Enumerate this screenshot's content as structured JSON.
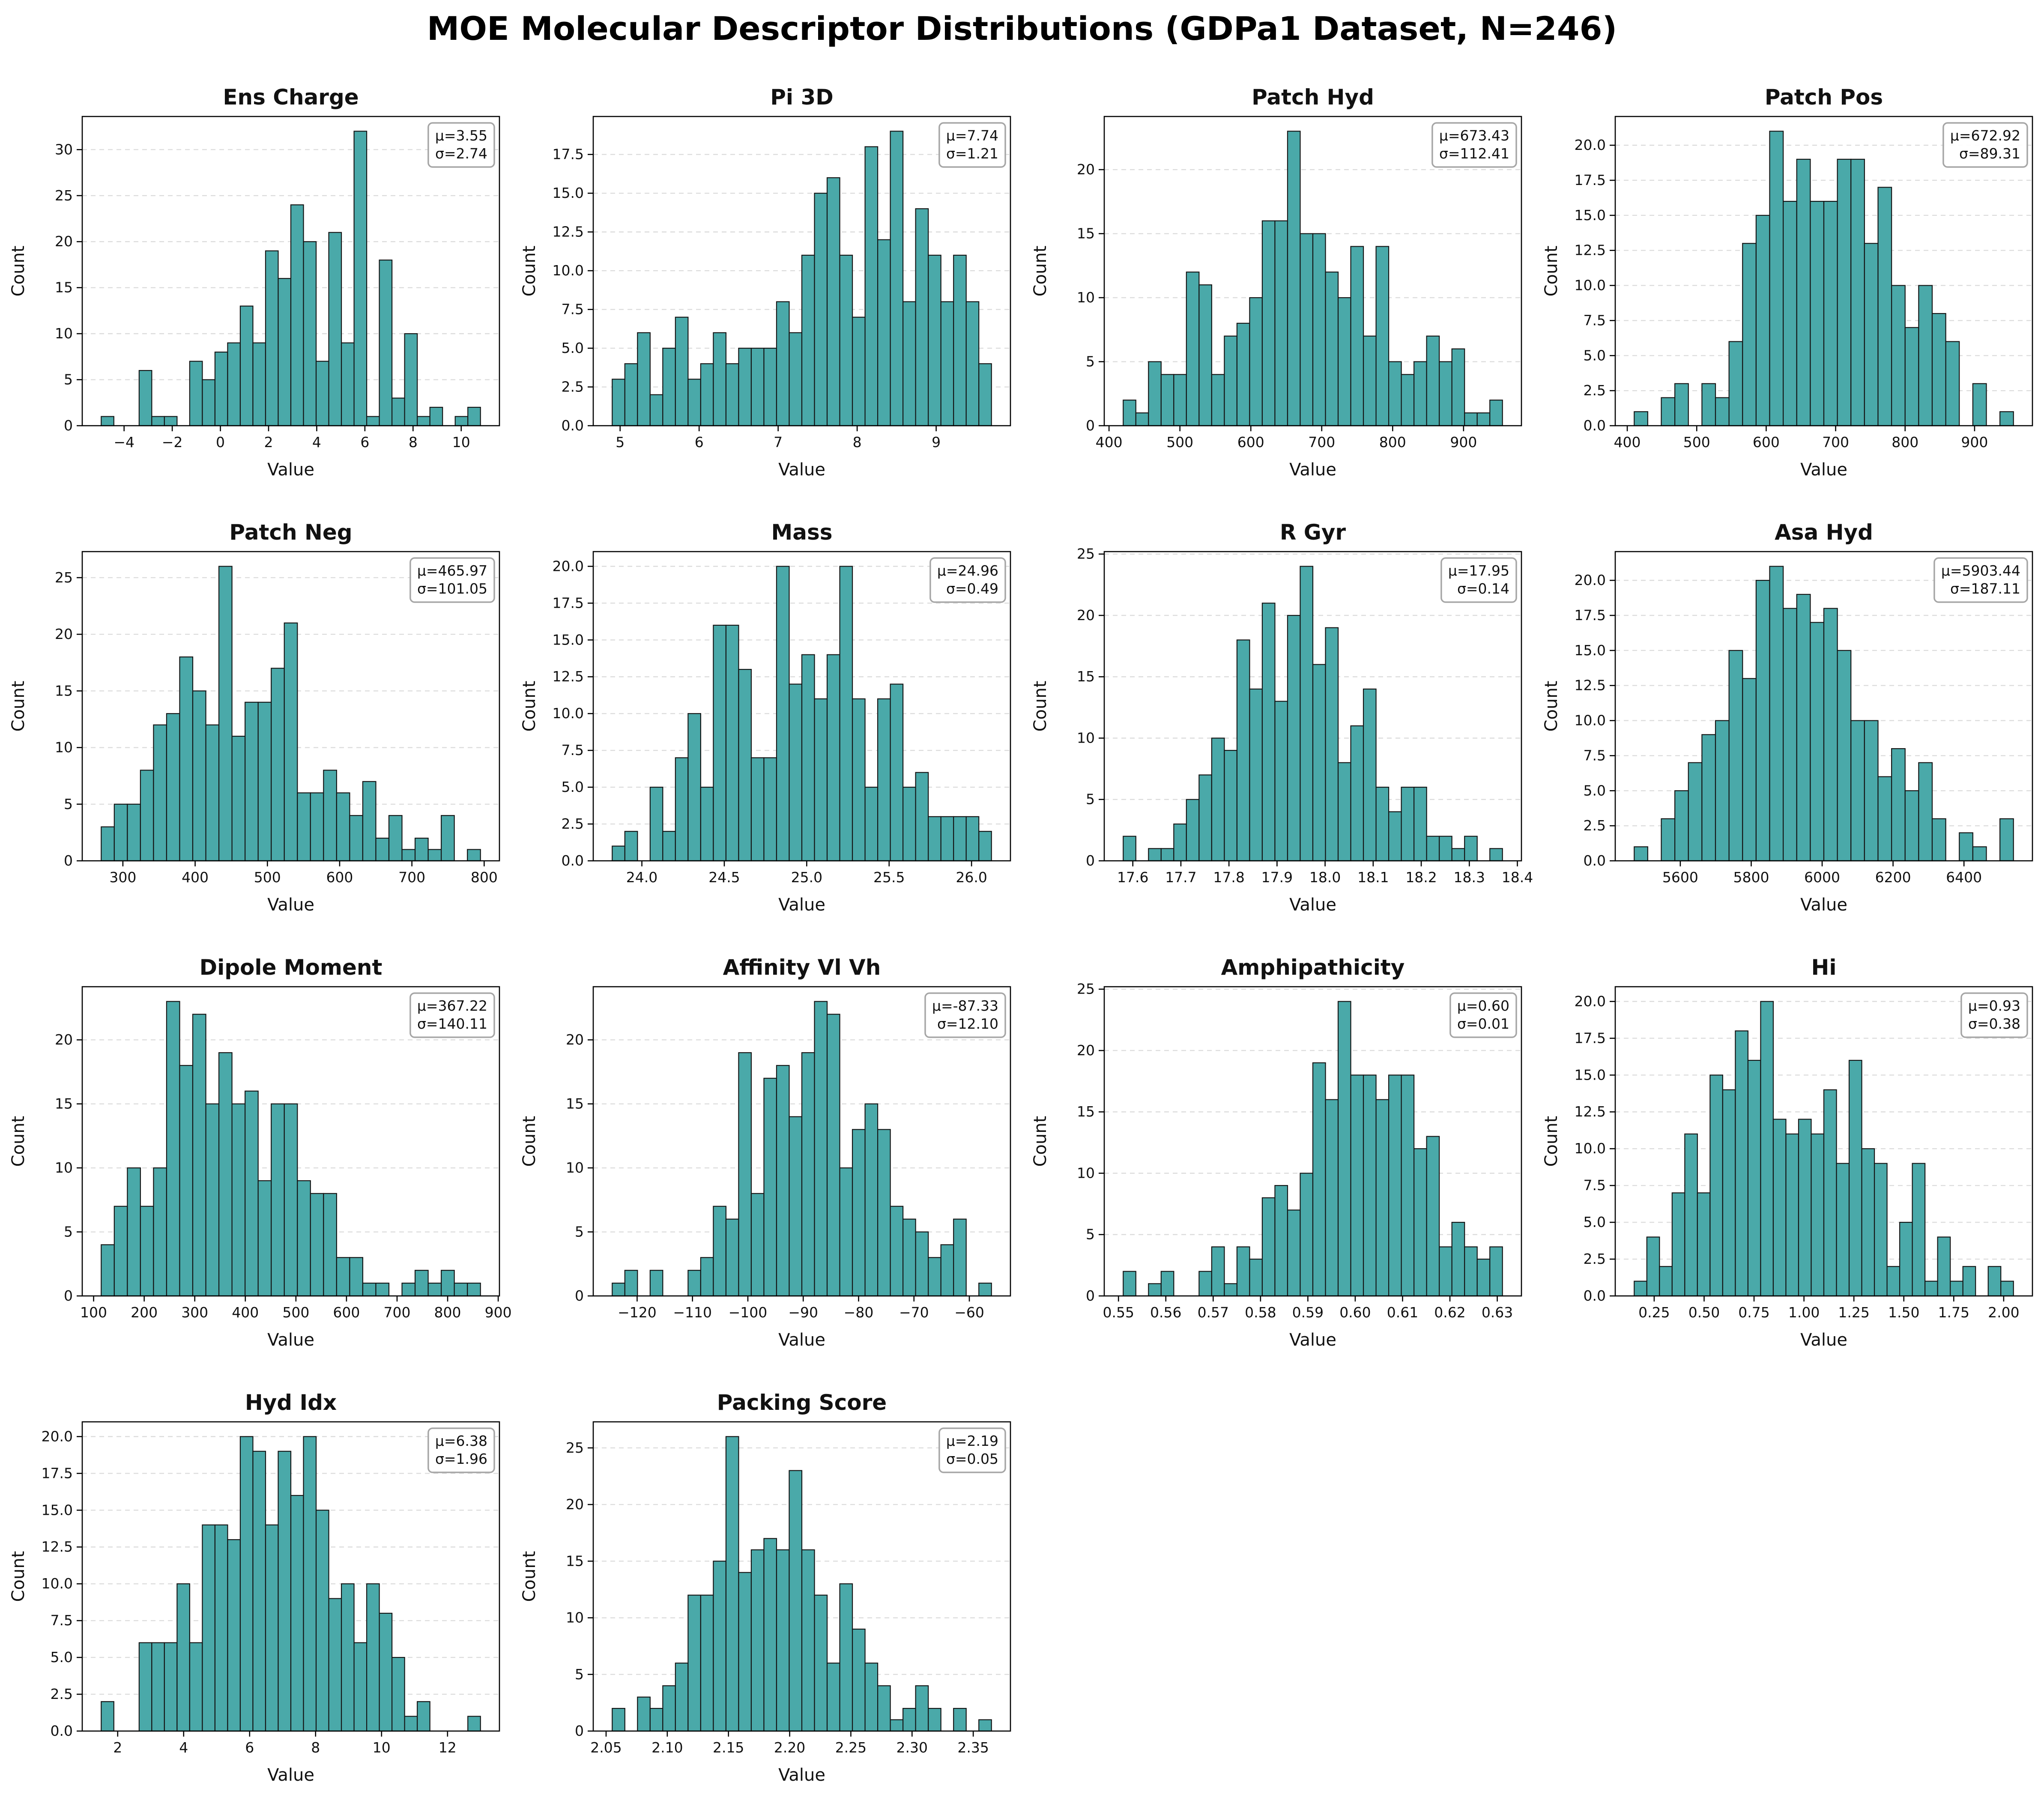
{
  "page": {
    "title": "MOE Molecular Descriptor Distributions (GDPa1 Dataset, N=246)"
  },
  "style": {
    "bar_fill": "#4aa9a9",
    "bar_edge": "#141414",
    "grid_color": "#dcdcdc",
    "spine_color": "#000000",
    "stats_border": "#a6a6a6",
    "stats_fill": "#ffffff",
    "text_color": "#111111"
  },
  "chart_data": {
    "type": "histogram-grid",
    "grid": [
      4,
      4
    ],
    "n_samples": 246,
    "xlabel": "Value",
    "ylabel": "Count",
    "charts": [
      {
        "type": "bar",
        "slug": "ens-charge",
        "title": "Ens Charge",
        "stats_mu": "μ=3.55",
        "stats_sigma": "σ=2.74",
        "bin_start": -4.95,
        "bin_width": 0.525,
        "counts": [
          1,
          0,
          0,
          6,
          1,
          1,
          0,
          7,
          5,
          8,
          9,
          13,
          9,
          19,
          16,
          24,
          20,
          7,
          21,
          9,
          32,
          1,
          18,
          3,
          10,
          1,
          2,
          0,
          1,
          2
        ],
        "x_tick_values": [
          -4,
          -2,
          0,
          2,
          4,
          6,
          8,
          10
        ],
        "x_tick_labels": [
          "−4",
          "−2",
          "0",
          "2",
          "4",
          "6",
          "8",
          "10"
        ],
        "y_tick_values": [
          0,
          5,
          10,
          15,
          20,
          25,
          30
        ],
        "y_tick_labels": [
          "0",
          "5",
          "10",
          "15",
          "20",
          "25",
          "30"
        ],
        "y_max": 33.6
      },
      {
        "type": "bar",
        "slug": "pi-3d",
        "title": "Pi 3D",
        "stats_mu": "μ=7.74",
        "stats_sigma": "σ=1.21",
        "bin_start": 4.9,
        "bin_width": 0.16,
        "counts": [
          3,
          4,
          6,
          2,
          5,
          7,
          3,
          4,
          6,
          4,
          5,
          5,
          5,
          8,
          6,
          11,
          15,
          16,
          11,
          7,
          18,
          12,
          19,
          8,
          14,
          11,
          8,
          11,
          8,
          4
        ],
        "x_tick_values": [
          5,
          6,
          7,
          8,
          9
        ],
        "x_tick_labels": [
          "5",
          "6",
          "7",
          "8",
          "9"
        ],
        "y_tick_values": [
          0,
          2.5,
          5,
          7.5,
          10,
          12.5,
          15,
          17.5
        ],
        "y_tick_labels": [
          "0.0",
          "2.5",
          "5.0",
          "7.5",
          "10.0",
          "12.5",
          "15.0",
          "17.5"
        ],
        "y_max": 19.95
      },
      {
        "type": "bar",
        "slug": "patch-hyd",
        "title": "Patch Hyd",
        "stats_mu": "μ=673.43",
        "stats_sigma": "σ=112.41",
        "bin_start": 420,
        "bin_width": 17.83,
        "counts": [
          2,
          1,
          5,
          4,
          4,
          12,
          11,
          4,
          7,
          8,
          10,
          16,
          16,
          23,
          15,
          15,
          12,
          10,
          14,
          7,
          14,
          5,
          4,
          5,
          7,
          5,
          6,
          1,
          1,
          2
        ],
        "x_tick_values": [
          400,
          500,
          600,
          700,
          800,
          900
        ],
        "x_tick_labels": [
          "400",
          "500",
          "600",
          "700",
          "800",
          "900"
        ],
        "y_tick_values": [
          0,
          5,
          10,
          15,
          20
        ],
        "y_tick_labels": [
          "0",
          "5",
          "10",
          "15",
          "20"
        ],
        "y_max": 24.15
      },
      {
        "type": "bar",
        "slug": "patch-pos",
        "title": "Patch Pos",
        "stats_mu": "μ=672.92",
        "stats_sigma": "σ=89.31",
        "bin_start": 410,
        "bin_width": 19.5,
        "counts": [
          1,
          0,
          2,
          3,
          0,
          3,
          2,
          6,
          13,
          15,
          21,
          16,
          19,
          16,
          16,
          19,
          19,
          13,
          17,
          10,
          7,
          10,
          8,
          6,
          0,
          3,
          0,
          1
        ],
        "x_tick_values": [
          400,
          500,
          600,
          700,
          800,
          900
        ],
        "x_tick_labels": [
          "400",
          "500",
          "600",
          "700",
          "800",
          "900"
        ],
        "y_tick_values": [
          0,
          2.5,
          5,
          7.5,
          10,
          12.5,
          15,
          17.5,
          20
        ],
        "y_tick_labels": [
          "0.0",
          "2.5",
          "5.0",
          "7.5",
          "10.0",
          "12.5",
          "15.0",
          "17.5",
          "20.0"
        ],
        "y_max": 22.05
      },
      {
        "type": "bar",
        "slug": "patch-neg",
        "title": "Patch Neg",
        "stats_mu": "μ=465.97",
        "stats_sigma": "σ=101.05",
        "bin_start": 270,
        "bin_width": 18.1,
        "counts": [
          3,
          5,
          5,
          8,
          12,
          13,
          18,
          15,
          12,
          26,
          11,
          14,
          14,
          17,
          21,
          6,
          6,
          8,
          6,
          4,
          7,
          2,
          4,
          1,
          2,
          1,
          4,
          0,
          1
        ],
        "x_tick_values": [
          300,
          400,
          500,
          600,
          700,
          800
        ],
        "x_tick_labels": [
          "300",
          "400",
          "500",
          "600",
          "700",
          "800"
        ],
        "y_tick_values": [
          0,
          5,
          10,
          15,
          20,
          25
        ],
        "y_tick_labels": [
          "0",
          "5",
          "10",
          "15",
          "20",
          "25"
        ],
        "y_max": 27.3
      },
      {
        "type": "bar",
        "slug": "mass",
        "title": "Mass",
        "stats_mu": "μ=24.96",
        "stats_sigma": "σ=0.49",
        "bin_start": 23.82,
        "bin_width": 0.0767,
        "counts": [
          1,
          2,
          0,
          5,
          2,
          7,
          10,
          5,
          16,
          16,
          13,
          7,
          7,
          20,
          12,
          14,
          11,
          14,
          20,
          11,
          5,
          11,
          12,
          5,
          6,
          3,
          3,
          3,
          3,
          2
        ],
        "x_tick_values": [
          24.0,
          24.5,
          25.0,
          25.5,
          26.0
        ],
        "x_tick_labels": [
          "24.0",
          "24.5",
          "25.0",
          "25.5",
          "26.0"
        ],
        "y_tick_values": [
          0,
          2.5,
          5,
          7.5,
          10,
          12.5,
          15,
          17.5,
          20
        ],
        "y_tick_labels": [
          "0.0",
          "2.5",
          "5.0",
          "7.5",
          "10.0",
          "12.5",
          "15.0",
          "17.5",
          "20.0"
        ],
        "y_max": 21.0
      },
      {
        "type": "bar",
        "slug": "r-gyr",
        "title": "R Gyr",
        "stats_mu": "μ=17.95",
        "stats_sigma": "σ=0.14",
        "bin_start": 17.58,
        "bin_width": 0.0263,
        "counts": [
          2,
          0,
          1,
          1,
          3,
          5,
          7,
          10,
          9,
          18,
          14,
          21,
          13,
          20,
          24,
          16,
          19,
          8,
          11,
          14,
          6,
          4,
          6,
          6,
          2,
          2,
          1,
          2,
          0,
          1
        ],
        "x_tick_values": [
          17.6,
          17.7,
          17.8,
          17.9,
          18.0,
          18.1,
          18.2,
          18.3,
          18.4
        ],
        "x_tick_labels": [
          "17.6",
          "17.7",
          "17.8",
          "17.9",
          "18.0",
          "18.1",
          "18.2",
          "18.3",
          "18.4"
        ],
        "y_tick_values": [
          0,
          5,
          10,
          15,
          20,
          25
        ],
        "y_tick_labels": [
          "0",
          "5",
          "10",
          "15",
          "20",
          "25"
        ],
        "y_max": 25.2
      },
      {
        "type": "bar",
        "slug": "asa-hyd",
        "title": "Asa Hyd",
        "stats_mu": "μ=5903.44",
        "stats_sigma": "σ=187.11",
        "bin_start": 5470,
        "bin_width": 38.2,
        "counts": [
          1,
          0,
          3,
          5,
          7,
          9,
          10,
          15,
          13,
          20,
          21,
          18,
          19,
          17,
          18,
          15,
          10,
          10,
          6,
          8,
          5,
          7,
          3,
          0,
          2,
          1,
          0,
          3
        ],
        "x_tick_values": [
          5600,
          5800,
          6000,
          6200,
          6400
        ],
        "x_tick_labels": [
          "5600",
          "5800",
          "6000",
          "6200",
          "6400"
        ],
        "y_tick_values": [
          0,
          2.5,
          5,
          7.5,
          10,
          12.5,
          15,
          17.5,
          20
        ],
        "y_tick_labels": [
          "0.0",
          "2.5",
          "5.0",
          "7.5",
          "10.0",
          "12.5",
          "15.0",
          "17.5",
          "20.0"
        ],
        "y_max": 22.05
      },
      {
        "type": "bar",
        "slug": "dipole-moment",
        "title": "Dipole Moment",
        "stats_mu": "μ=367.22",
        "stats_sigma": "σ=140.11",
        "bin_start": 115,
        "bin_width": 25.86,
        "counts": [
          4,
          7,
          10,
          7,
          10,
          23,
          18,
          22,
          15,
          19,
          15,
          16,
          9,
          15,
          15,
          9,
          8,
          8,
          3,
          3,
          1,
          1,
          0,
          1,
          2,
          1,
          2,
          1,
          1
        ],
        "x_tick_values": [
          100,
          200,
          300,
          400,
          500,
          600,
          700,
          800,
          900
        ],
        "x_tick_labels": [
          "100",
          "200",
          "300",
          "400",
          "500",
          "600",
          "700",
          "800",
          "900"
        ],
        "y_tick_values": [
          0,
          5,
          10,
          15,
          20
        ],
        "y_tick_labels": [
          "0",
          "5",
          "10",
          "15",
          "20"
        ],
        "y_max": 24.15
      },
      {
        "type": "bar",
        "slug": "affinity-vl-vh",
        "title": "Affinity Vl Vh",
        "stats_mu": "μ=-87.33",
        "stats_sigma": "σ=12.10",
        "bin_start": -124.5,
        "bin_width": 2.2833,
        "counts": [
          1,
          2,
          0,
          2,
          0,
          0,
          2,
          3,
          7,
          6,
          19,
          8,
          17,
          18,
          14,
          19,
          23,
          22,
          10,
          13,
          15,
          13,
          7,
          6,
          5,
          3,
          4,
          6,
          0,
          1
        ],
        "x_tick_values": [
          -120,
          -110,
          -100,
          -90,
          -80,
          -70,
          -60
        ],
        "x_tick_labels": [
          "−120",
          "−110",
          "−100",
          "−90",
          "−80",
          "−70",
          "−60"
        ],
        "y_tick_values": [
          0,
          5,
          10,
          15,
          20
        ],
        "y_tick_labels": [
          "0",
          "5",
          "10",
          "15",
          "20"
        ],
        "y_max": 24.15
      },
      {
        "type": "bar",
        "slug": "amphipathicity",
        "title": "Amphipathicity",
        "stats_mu": "μ=0.60",
        "stats_sigma": "σ=0.01",
        "bin_start": 0.551,
        "bin_width": 0.00267,
        "counts": [
          2,
          0,
          1,
          2,
          0,
          0,
          2,
          4,
          1,
          4,
          3,
          8,
          9,
          7,
          10,
          19,
          16,
          24,
          18,
          18,
          16,
          18,
          18,
          12,
          13,
          4,
          6,
          4,
          3,
          4
        ],
        "x_tick_values": [
          0.55,
          0.56,
          0.57,
          0.58,
          0.59,
          0.6,
          0.61,
          0.62,
          0.63
        ],
        "x_tick_labels": [
          "0.55",
          "0.56",
          "0.57",
          "0.58",
          "0.59",
          "0.60",
          "0.61",
          "0.62",
          "0.63"
        ],
        "y_tick_values": [
          0,
          5,
          10,
          15,
          20,
          25
        ],
        "y_tick_labels": [
          "0",
          "5",
          "10",
          "15",
          "20",
          "25"
        ],
        "y_max": 25.2
      },
      {
        "type": "bar",
        "slug": "hi",
        "title": "Hi",
        "stats_mu": "μ=0.93",
        "stats_sigma": "σ=0.38",
        "bin_start": 0.15,
        "bin_width": 0.0633,
        "counts": [
          1,
          4,
          2,
          7,
          11,
          7,
          15,
          14,
          18,
          16,
          20,
          12,
          11,
          12,
          11,
          14,
          9,
          16,
          10,
          9,
          2,
          5,
          9,
          1,
          4,
          1,
          2,
          0,
          2,
          1
        ],
        "x_tick_values": [
          0.25,
          0.5,
          0.75,
          1.0,
          1.25,
          1.5,
          1.75,
          2.0
        ],
        "x_tick_labels": [
          "0.25",
          "0.50",
          "0.75",
          "1.00",
          "1.25",
          "1.50",
          "1.75",
          "2.00"
        ],
        "y_tick_values": [
          0,
          2.5,
          5,
          7.5,
          10,
          12.5,
          15,
          17.5,
          20
        ],
        "y_tick_labels": [
          "0.0",
          "2.5",
          "5.0",
          "7.5",
          "10.0",
          "12.5",
          "15.0",
          "17.5",
          "20.0"
        ],
        "y_max": 21.0
      },
      {
        "type": "bar",
        "slug": "hyd-idx",
        "title": "Hyd Idx",
        "stats_mu": "μ=6.38",
        "stats_sigma": "σ=1.96",
        "bin_start": 1.5,
        "bin_width": 0.3833,
        "counts": [
          2,
          0,
          0,
          6,
          6,
          6,
          10,
          6,
          14,
          14,
          13,
          20,
          19,
          14,
          19,
          16,
          20,
          15,
          9,
          10,
          6,
          10,
          8,
          5,
          1,
          2,
          0,
          0,
          0,
          1
        ],
        "x_tick_values": [
          2,
          4,
          6,
          8,
          10,
          12
        ],
        "x_tick_labels": [
          "2",
          "4",
          "6",
          "8",
          "10",
          "12"
        ],
        "y_tick_values": [
          0,
          2.5,
          5,
          7.5,
          10,
          12.5,
          15,
          17.5,
          20
        ],
        "y_tick_labels": [
          "0.0",
          "2.5",
          "5.0",
          "7.5",
          "10.0",
          "12.5",
          "15.0",
          "17.5",
          "20.0"
        ],
        "y_max": 21.0
      },
      {
        "type": "bar",
        "slug": "packing-score",
        "title": "Packing Score",
        "stats_mu": "μ=2.19",
        "stats_sigma": "σ=0.05",
        "bin_start": 2.055,
        "bin_width": 0.01033,
        "counts": [
          2,
          0,
          3,
          2,
          4,
          6,
          12,
          12,
          15,
          26,
          14,
          16,
          17,
          16,
          23,
          16,
          12,
          6,
          13,
          9,
          6,
          4,
          1,
          2,
          4,
          2,
          0,
          2,
          0,
          1
        ],
        "x_tick_values": [
          2.05,
          2.1,
          2.15,
          2.2,
          2.25,
          2.3,
          2.35
        ],
        "x_tick_labels": [
          "2.05",
          "2.10",
          "2.15",
          "2.20",
          "2.25",
          "2.30",
          "2.35"
        ],
        "y_tick_values": [
          0,
          5,
          10,
          15,
          20,
          25
        ],
        "y_tick_labels": [
          "0",
          "5",
          "10",
          "15",
          "20",
          "25"
        ],
        "y_max": 27.3
      }
    ]
  }
}
